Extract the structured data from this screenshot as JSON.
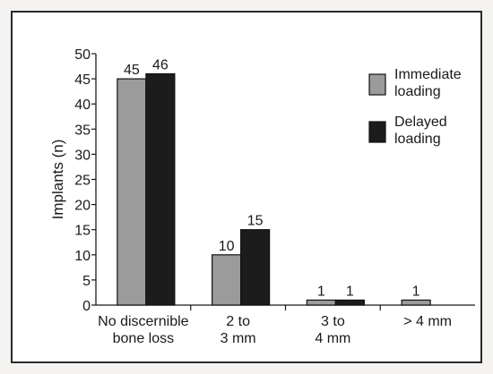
{
  "chart_data": {
    "type": "bar",
    "title": "",
    "ylabel": "Implants (n)",
    "xlabel": "",
    "ylim": [
      0,
      50
    ],
    "yticks": [
      0,
      5,
      10,
      15,
      20,
      25,
      30,
      35,
      40,
      45,
      50
    ],
    "categories": [
      [
        "No discernible",
        "bone loss"
      ],
      [
        "2 to",
        "3 mm"
      ],
      [
        "3 to",
        "4 mm"
      ],
      [
        "> 4 mm"
      ]
    ],
    "series": [
      {
        "name": "Immediate loading",
        "legend_lines": [
          "Immediate",
          "loading"
        ],
        "color": "#9b9b9b",
        "values": [
          45,
          10,
          1,
          1
        ],
        "labels": [
          "45",
          "10",
          "1",
          "1"
        ]
      },
      {
        "name": "Delayed loading",
        "legend_lines": [
          "Delayed",
          "loading"
        ],
        "color": "#1c1c1c",
        "values": [
          46,
          15,
          1,
          0
        ],
        "labels": [
          "46",
          "15",
          "1",
          ""
        ]
      }
    ],
    "legend_position": "top-right",
    "grid": false
  },
  "colors": {
    "frame": "#f4f3f2",
    "panel": "#ffffff",
    "axis": "#1a1a1a"
  }
}
